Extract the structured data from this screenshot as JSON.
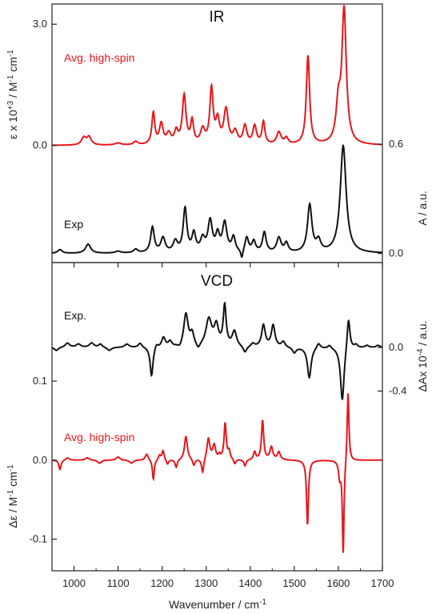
{
  "figure": {
    "x_axis_title": "Wavenumber / cm",
    "x_axis_title_sup": "-1"
  },
  "colors": {
    "avg": "#e8161b",
    "exp": "#111111",
    "frame": "#222222"
  },
  "chart_data": [
    {
      "panel": "IR",
      "type": "line",
      "title": "IR",
      "xlabel": "Wavenumber / cm-1",
      "xlim": [
        950,
        1700
      ],
      "x_ticks": [
        "1000",
        "1100",
        "1200",
        "1300",
        "1400",
        "1500",
        "1600",
        "1700"
      ],
      "left_axis": {
        "label_parts": [
          "ε x 10",
          "+3",
          " / M",
          "-1",
          " cm",
          "-1"
        ],
        "ticks": [
          "0.0",
          "3.0"
        ]
      },
      "right_axis": {
        "label": "A / a.u.",
        "ticks": [
          "0.0",
          "0.6"
        ]
      },
      "grid": false,
      "series": [
        {
          "name": "Avg. high-spin",
          "color": "#e8161b",
          "baseline_left": 0.0,
          "ylim_left": [
            -2.9,
            3.5
          ],
          "peaks": [
            {
              "x": 1022,
              "h": 0.18,
              "w": 6
            },
            {
              "x": 1034,
              "h": 0.2,
              "w": 6
            },
            {
              "x": 1100,
              "h": 0.05,
              "w": 8
            },
            {
              "x": 1140,
              "h": 0.08,
              "w": 6
            },
            {
              "x": 1180,
              "h": 0.78,
              "w": 4
            },
            {
              "x": 1198,
              "h": 0.5,
              "w": 5
            },
            {
              "x": 1215,
              "h": 0.25,
              "w": 6
            },
            {
              "x": 1232,
              "h": 0.3,
              "w": 5
            },
            {
              "x": 1250,
              "h": 1.2,
              "w": 5
            },
            {
              "x": 1268,
              "h": 0.55,
              "w": 4
            },
            {
              "x": 1292,
              "h": 0.35,
              "w": 6
            },
            {
              "x": 1312,
              "h": 1.35,
              "w": 4.5
            },
            {
              "x": 1326,
              "h": 0.55,
              "w": 5
            },
            {
              "x": 1345,
              "h": 0.85,
              "w": 6
            },
            {
              "x": 1366,
              "h": 0.3,
              "w": 6
            },
            {
              "x": 1388,
              "h": 0.45,
              "w": 5
            },
            {
              "x": 1410,
              "h": 0.45,
              "w": 5
            },
            {
              "x": 1430,
              "h": 0.55,
              "w": 4
            },
            {
              "x": 1465,
              "h": 0.3,
              "w": 6
            },
            {
              "x": 1482,
              "h": 0.15,
              "w": 5
            },
            {
              "x": 1531,
              "h": 2.2,
              "w": 4.5
            },
            {
              "x": 1600,
              "h": 0.9,
              "w": 6
            },
            {
              "x": 1613,
              "h": 3.3,
              "w": 6
            }
          ]
        },
        {
          "name": "Exp",
          "color": "#111111",
          "baseline_right": 0.0,
          "ylim_right": [
            -0.05,
            1.37
          ],
          "peaks": [
            {
              "x": 968,
              "h": 0.02,
              "w": 6
            },
            {
              "x": 1032,
              "h": 0.05,
              "w": 7
            },
            {
              "x": 1100,
              "h": 0.01,
              "w": 8
            },
            {
              "x": 1140,
              "h": 0.02,
              "w": 6
            },
            {
              "x": 1178,
              "h": 0.14,
              "w": 5
            },
            {
              "x": 1202,
              "h": 0.08,
              "w": 6
            },
            {
              "x": 1230,
              "h": 0.06,
              "w": 6
            },
            {
              "x": 1252,
              "h": 0.24,
              "w": 5
            },
            {
              "x": 1272,
              "h": 0.1,
              "w": 5
            },
            {
              "x": 1292,
              "h": 0.07,
              "w": 6
            },
            {
              "x": 1309,
              "h": 0.17,
              "w": 6
            },
            {
              "x": 1326,
              "h": 0.09,
              "w": 5
            },
            {
              "x": 1342,
              "h": 0.16,
              "w": 6
            },
            {
              "x": 1362,
              "h": 0.08,
              "w": 5
            },
            {
              "x": 1381,
              "h": -0.05,
              "w": 3
            },
            {
              "x": 1392,
              "h": 0.08,
              "w": 5
            },
            {
              "x": 1408,
              "h": 0.06,
              "w": 5
            },
            {
              "x": 1432,
              "h": 0.11,
              "w": 5
            },
            {
              "x": 1465,
              "h": 0.08,
              "w": 6
            },
            {
              "x": 1482,
              "h": 0.05,
              "w": 5
            },
            {
              "x": 1535,
              "h": 0.26,
              "w": 6
            },
            {
              "x": 1555,
              "h": 0.06,
              "w": 6
            },
            {
              "x": 1611,
              "h": 0.59,
              "w": 8
            }
          ]
        }
      ],
      "series_labels": [
        "Avg. high-spin",
        "Exp"
      ]
    },
    {
      "panel": "VCD",
      "type": "line",
      "title": "VCD",
      "xlabel": "Wavenumber / cm-1",
      "xlim": [
        950,
        1700
      ],
      "x_ticks": [
        "1000",
        "1100",
        "1200",
        "1300",
        "1400",
        "1500",
        "1600",
        "1700"
      ],
      "left_axis": {
        "label_parts": [
          "Δε / M",
          "-1",
          " cm",
          "-1"
        ],
        "ticks": [
          "-0.1",
          "0.0",
          "0.1"
        ]
      },
      "right_axis": {
        "label_parts": [
          "ΔAx 10",
          "-4",
          " / a.u."
        ],
        "ticks": [
          "-0.4",
          "0.0"
        ]
      },
      "grid": false,
      "series": [
        {
          "name": "Exp.",
          "color": "#111111",
          "baseline_right": 0.0,
          "ylim_right": [
            -2.05,
            0.78
          ],
          "peaks": [
            {
              "x": 960,
              "h": -0.03,
              "w": 5
            },
            {
              "x": 985,
              "h": 0.04,
              "w": 6
            },
            {
              "x": 1010,
              "h": 0.03,
              "w": 6
            },
            {
              "x": 1040,
              "h": 0.04,
              "w": 6
            },
            {
              "x": 1060,
              "h": 0.03,
              "w": 5
            },
            {
              "x": 1080,
              "h": -0.03,
              "w": 6
            },
            {
              "x": 1120,
              "h": 0.03,
              "w": 6
            },
            {
              "x": 1150,
              "h": 0.04,
              "w": 5
            },
            {
              "x": 1176,
              "h": -0.27,
              "w": 4
            },
            {
              "x": 1187,
              "h": 0.04,
              "w": 4
            },
            {
              "x": 1203,
              "h": 0.09,
              "w": 5
            },
            {
              "x": 1218,
              "h": 0.05,
              "w": 5
            },
            {
              "x": 1240,
              "h": -0.03,
              "w": 5
            },
            {
              "x": 1254,
              "h": 0.3,
              "w": 6
            },
            {
              "x": 1268,
              "h": 0.11,
              "w": 5
            },
            {
              "x": 1282,
              "h": -0.05,
              "w": 5
            },
            {
              "x": 1306,
              "h": 0.25,
              "w": 8
            },
            {
              "x": 1323,
              "h": 0.18,
              "w": 6
            },
            {
              "x": 1342,
              "h": 0.37,
              "w": 4
            },
            {
              "x": 1364,
              "h": 0.14,
              "w": 6
            },
            {
              "x": 1388,
              "h": -0.06,
              "w": 5
            },
            {
              "x": 1406,
              "h": 0.03,
              "w": 5
            },
            {
              "x": 1430,
              "h": 0.2,
              "w": 5
            },
            {
              "x": 1452,
              "h": 0.2,
              "w": 5
            },
            {
              "x": 1475,
              "h": 0.05,
              "w": 5
            },
            {
              "x": 1500,
              "h": -0.05,
              "w": 5
            },
            {
              "x": 1534,
              "h": -0.28,
              "w": 5
            },
            {
              "x": 1555,
              "h": 0.05,
              "w": 5
            },
            {
              "x": 1580,
              "h": 0.03,
              "w": 5
            },
            {
              "x": 1609,
              "h": -0.5,
              "w": 5
            },
            {
              "x": 1623,
              "h": 0.3,
              "w": 4
            },
            {
              "x": 1640,
              "h": 0.03,
              "w": 5
            },
            {
              "x": 1665,
              "h": 0.02,
              "w": 5
            },
            {
              "x": 1690,
              "h": 0.02,
              "w": 5
            }
          ]
        },
        {
          "name": "Avg. high-spin",
          "color": "#e8161b",
          "baseline_left": 0.0,
          "ylim_left": [
            -0.14,
            0.25
          ],
          "peaks": [
            {
              "x": 968,
              "h": -0.012,
              "w": 3
            },
            {
              "x": 985,
              "h": 0.003,
              "w": 5
            },
            {
              "x": 1030,
              "h": 0.003,
              "w": 5
            },
            {
              "x": 1058,
              "h": -0.004,
              "w": 5
            },
            {
              "x": 1100,
              "h": 0.004,
              "w": 5
            },
            {
              "x": 1130,
              "h": -0.004,
              "w": 5
            },
            {
              "x": 1165,
              "h": 0.008,
              "w": 4
            },
            {
              "x": 1180,
              "h": -0.025,
              "w": 2.5
            },
            {
              "x": 1194,
              "h": 0.006,
              "w": 3
            },
            {
              "x": 1202,
              "h": 0.012,
              "w": 3
            },
            {
              "x": 1212,
              "h": -0.006,
              "w": 3
            },
            {
              "x": 1232,
              "h": -0.01,
              "w": 3
            },
            {
              "x": 1254,
              "h": 0.03,
              "w": 4
            },
            {
              "x": 1272,
              "h": -0.008,
              "w": 3
            },
            {
              "x": 1292,
              "h": -0.018,
              "w": 3
            },
            {
              "x": 1305,
              "h": 0.027,
              "w": 4
            },
            {
              "x": 1318,
              "h": 0.018,
              "w": 4
            },
            {
              "x": 1330,
              "h": 0.005,
              "w": 3
            },
            {
              "x": 1343,
              "h": 0.046,
              "w": 3
            },
            {
              "x": 1352,
              "h": 0.01,
              "w": 3
            },
            {
              "x": 1365,
              "h": -0.006,
              "w": 3
            },
            {
              "x": 1388,
              "h": -0.008,
              "w": 3
            },
            {
              "x": 1410,
              "h": 0.01,
              "w": 3
            },
            {
              "x": 1428,
              "h": 0.05,
              "w": 3
            },
            {
              "x": 1448,
              "h": 0.016,
              "w": 4
            },
            {
              "x": 1465,
              "h": 0.01,
              "w": 4
            },
            {
              "x": 1530,
              "h": -0.082,
              "w": 2.6
            },
            {
              "x": 1603,
              "h": -0.02,
              "w": 3
            },
            {
              "x": 1611,
              "h": -0.12,
              "w": 2.3
            },
            {
              "x": 1622,
              "h": 0.09,
              "w": 2.4
            }
          ]
        }
      ],
      "series_labels": [
        "Exp.",
        "Avg. high-spin"
      ]
    }
  ]
}
